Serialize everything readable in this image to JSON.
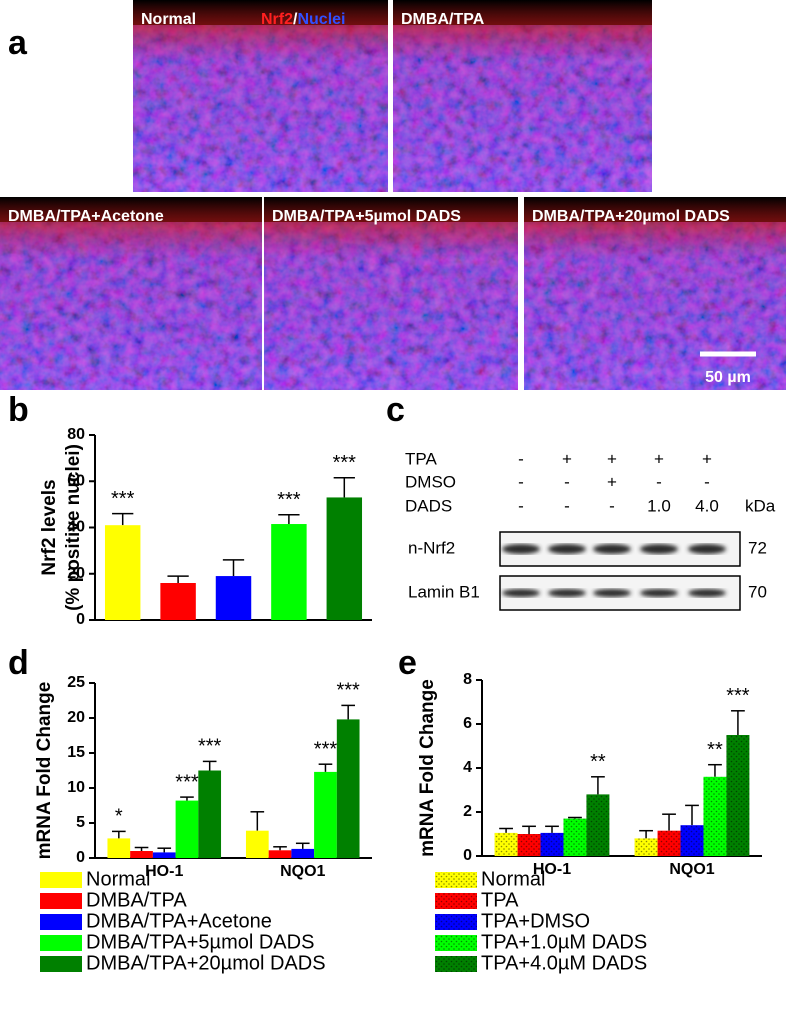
{
  "panel_a": {
    "label": "a",
    "stain": [
      "Nrf2",
      "/",
      "Nuclei"
    ],
    "images": [
      "Normal",
      "DMBA/TPA",
      "DMBA/TPA+Acetone",
      "DMBA/TPA+5µmol DADS",
      "DMBA/TPA+20µmol DADS"
    ],
    "scale_bar": "50 µm"
  },
  "panel_c": {
    "label": "c",
    "conditions": [
      {
        "name": "TPA",
        "marks": [
          "-",
          "+",
          "+",
          "+",
          "+"
        ]
      },
      {
        "name": "DMSO",
        "marks": [
          "-",
          "-",
          "+",
          "-",
          "-"
        ]
      },
      {
        "name": "DADS",
        "marks": [
          "-",
          "-",
          "-",
          "1.0",
          "4.0"
        ]
      }
    ],
    "unit": "kDa",
    "bands": [
      {
        "name": "n-Nrf2",
        "kda": 72
      },
      {
        "name": "Lamin B1",
        "kda": 70
      }
    ]
  },
  "chart_data": [
    {
      "type": "bar",
      "label": "b",
      "ylabel": [
        "Nrf2 levels",
        "(% positive nuclei)"
      ],
      "categories": [
        null,
        null,
        null,
        null,
        null
      ],
      "values": [
        41,
        16,
        19,
        41.5,
        53
      ],
      "errors": [
        5,
        3,
        7,
        4,
        8.5
      ],
      "colors": [
        "#ffff00",
        "#ff0000",
        "#0000ff",
        "#00ff00",
        "#008000"
      ],
      "annotations": [
        "***",
        null,
        null,
        "***",
        "***"
      ],
      "ylim": [
        0,
        80
      ],
      "yticks": [
        0,
        20,
        40,
        60,
        80
      ]
    },
    {
      "type": "grouped_bar",
      "label": "d",
      "ylabel": "mRNA Fold Change",
      "categories": [
        "HO-1",
        "NQO1"
      ],
      "ylim": [
        0,
        25
      ],
      "yticks": [
        0,
        5,
        10,
        15,
        20,
        25
      ],
      "pattern": "solid",
      "series": [
        {
          "name": "Normal",
          "color": "#ffff00",
          "values": [
            2.8,
            3.9
          ],
          "errors": [
            1.0,
            2.7
          ],
          "annotations": [
            "*",
            null
          ]
        },
        {
          "name": "DMBA/TPA",
          "color": "#ff0000",
          "values": [
            1.0,
            1.1
          ],
          "errors": [
            0.5,
            0.5
          ],
          "annotations": [
            null,
            null
          ]
        },
        {
          "name": "DMBA/TPA+Acetone",
          "color": "#0000ff",
          "values": [
            0.8,
            1.3
          ],
          "errors": [
            0.6,
            0.8
          ],
          "annotations": [
            null,
            null
          ]
        },
        {
          "name": "DMBA/TPA+5µmol DADS",
          "color": "#00ff00",
          "values": [
            8.2,
            12.3
          ],
          "errors": [
            0.5,
            1.1
          ],
          "annotations": [
            "***",
            "***"
          ]
        },
        {
          "name": "DMBA/TPA+20µmol DADS",
          "color": "#008000",
          "values": [
            12.5,
            19.8
          ],
          "errors": [
            1.3,
            2.0
          ],
          "annotations": [
            "***",
            "***"
          ]
        }
      ]
    },
    {
      "type": "grouped_bar",
      "label": "e",
      "ylabel": "mRNA Fold Change",
      "categories": [
        "HO-1",
        "NQO1"
      ],
      "ylim": [
        0,
        8
      ],
      "yticks": [
        0,
        2,
        4,
        6,
        8
      ],
      "pattern": "dots",
      "series": [
        {
          "name": "Normal",
          "color": "#ffff00",
          "values": [
            1.05,
            0.8
          ],
          "errors": [
            0.2,
            0.35
          ],
          "annotations": [
            null,
            null
          ]
        },
        {
          "name": "TPA",
          "color": "#ff0000",
          "values": [
            1.0,
            1.15
          ],
          "errors": [
            0.35,
            0.75
          ],
          "annotations": [
            null,
            null
          ]
        },
        {
          "name": "TPA+DMSO",
          "color": "#0000ff",
          "values": [
            1.05,
            1.4
          ],
          "errors": [
            0.3,
            0.9
          ],
          "annotations": [
            null,
            null
          ]
        },
        {
          "name": "TPA+1.0µM DADS",
          "color": "#00ff00",
          "values": [
            1.7,
            3.6
          ],
          "errors": [
            0.05,
            0.55
          ],
          "annotations": [
            null,
            "**"
          ]
        },
        {
          "name": "TPA+4.0µM DADS",
          "color": "#008000",
          "values": [
            2.8,
            5.5
          ],
          "errors": [
            0.8,
            1.1
          ],
          "annotations": [
            "**",
            "***"
          ]
        }
      ]
    }
  ]
}
